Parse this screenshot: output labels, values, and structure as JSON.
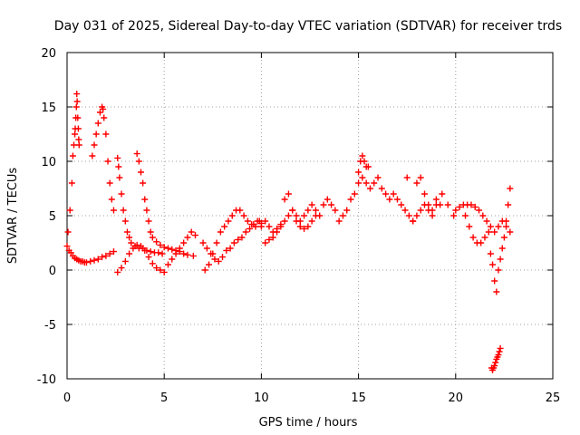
{
  "chart_data": {
    "type": "scatter",
    "title": "Day 031 of 2025, Sidereal Day-to-day VTEC variation (SDTVAR) for receiver trds",
    "xlabel": "GPS time / hours",
    "ylabel": "SDTVAR / TECUs",
    "xlim": [
      0,
      25
    ],
    "ylim": [
      -10,
      20
    ],
    "xticks": [
      0,
      5,
      10,
      15,
      20,
      25
    ],
    "yticks": [
      -10,
      -5,
      0,
      5,
      10,
      15,
      20
    ],
    "xtick_labels": [
      "0",
      "5",
      "10",
      "15",
      "20",
      "25"
    ],
    "ytick_labels": [
      "-10",
      "-5",
      "0",
      "5",
      "10",
      "15",
      "20"
    ],
    "grid": true,
    "marker": "+",
    "color": "#ff0000",
    "series": [
      {
        "name": "trds",
        "x": [
          0.0,
          0.1,
          0.2,
          0.3,
          0.4,
          0.5,
          0.6,
          0.7,
          0.8,
          0.9,
          1.0,
          1.2,
          1.4,
          1.6,
          1.8,
          2.0,
          2.2,
          2.4,
          0.05,
          0.15,
          0.25,
          0.3,
          0.35,
          0.4,
          0.42,
          0.45,
          0.48,
          0.5,
          0.52,
          0.55,
          0.58,
          0.6,
          0.62,
          1.3,
          1.4,
          1.5,
          1.6,
          1.7,
          1.8,
          1.85,
          1.9,
          2.0,
          2.1,
          2.2,
          2.3,
          2.4,
          2.6,
          2.65,
          2.7,
          2.8,
          2.9,
          3.0,
          3.1,
          3.2,
          3.3,
          3.5,
          3.7,
          3.9,
          4.1,
          4.3,
          4.5,
          4.7,
          4.9,
          3.6,
          3.7,
          3.8,
          3.9,
          4.0,
          4.1,
          4.2,
          4.3,
          4.4,
          4.6,
          4.8,
          5.0,
          5.2,
          5.4,
          5.6,
          5.8,
          6.0,
          6.2,
          6.5,
          2.6,
          2.8,
          3.0,
          3.2,
          3.4,
          3.6,
          3.8,
          4.0,
          4.2,
          4.4,
          4.6,
          4.8,
          5.0,
          5.2,
          5.4,
          5.6,
          5.8,
          6.0,
          6.2,
          6.4,
          6.6,
          7.0,
          7.2,
          7.4,
          7.6,
          7.8,
          8.0,
          8.2,
          8.4,
          8.6,
          8.8,
          9.0,
          9.2,
          9.4,
          9.6,
          9.8,
          10.0,
          7.1,
          7.3,
          7.5,
          7.7,
          7.9,
          8.1,
          8.3,
          8.5,
          8.7,
          8.9,
          9.1,
          9.3,
          9.5,
          9.7,
          9.9,
          10.0,
          10.2,
          10.4,
          10.6,
          10.8,
          11.0,
          11.2,
          11.4,
          11.6,
          11.8,
          12.0,
          12.2,
          12.4,
          12.6,
          12.8,
          10.2,
          10.4,
          10.6,
          10.8,
          11.0,
          11.2,
          11.4,
          11.6,
          11.8,
          12.0,
          12.2,
          12.4,
          12.6,
          12.8,
          13.0,
          13.2,
          13.4,
          13.6,
          13.8,
          14.0,
          14.2,
          14.4,
          14.6,
          14.8,
          15.0,
          15.2,
          15.4,
          15.6,
          15.8,
          16.0,
          16.2,
          16.4,
          16.6,
          16.8,
          17.0,
          17.2,
          17.4,
          17.6,
          17.8,
          18.0,
          18.2,
          18.4,
          18.6,
          18.8,
          19.0,
          19.2,
          15.0,
          15.1,
          15.2,
          15.3,
          15.4,
          15.5,
          17.5,
          17.8,
          18.0,
          18.2,
          18.4,
          18.6,
          18.8,
          19.0,
          19.3,
          19.6,
          19.9,
          20.0,
          20.2,
          20.4,
          20.6,
          20.8,
          21.0,
          21.2,
          21.4,
          21.6,
          21.8,
          22.0,
          22.2,
          22.4,
          22.6,
          22.8,
          20.5,
          20.7,
          20.9,
          21.1,
          21.3,
          21.5,
          21.7,
          21.8,
          21.9,
          22.0,
          22.1,
          22.2,
          22.3,
          22.4,
          22.5,
          22.6,
          22.7,
          22.8,
          21.85,
          21.9,
          21.95,
          22.0,
          22.05,
          22.1,
          22.15,
          22.2,
          22.25,
          22.3
        ],
        "y": [
          2.2,
          1.8,
          1.6,
          1.3,
          1.1,
          1.0,
          0.9,
          0.8,
          0.8,
          0.7,
          0.7,
          0.8,
          0.9,
          1.0,
          1.2,
          1.3,
          1.5,
          1.7,
          3.5,
          5.5,
          8.0,
          10.5,
          11.5,
          12.5,
          13.0,
          14.0,
          15.0,
          16.2,
          15.5,
          14.0,
          13.0,
          12.0,
          11.5,
          10.5,
          11.5,
          12.5,
          13.5,
          14.5,
          15.0,
          14.8,
          14.0,
          12.5,
          10.0,
          8.0,
          6.5,
          5.5,
          10.3,
          9.5,
          8.5,
          7.0,
          5.5,
          4.5,
          3.5,
          3.0,
          2.5,
          2.2,
          2.0,
          2.0,
          1.8,
          1.7,
          1.6,
          1.6,
          1.5,
          10.7,
          10.0,
          9.0,
          8.0,
          6.5,
          5.5,
          4.5,
          3.5,
          3.0,
          2.6,
          2.3,
          2.1,
          2.0,
          1.9,
          1.8,
          1.7,
          1.5,
          1.4,
          1.3,
          -0.2,
          0.2,
          0.8,
          1.5,
          2.0,
          2.3,
          2.2,
          1.8,
          1.2,
          0.6,
          0.2,
          0.0,
          -0.2,
          0.5,
          1.0,
          1.5,
          2.0,
          2.5,
          3.0,
          3.5,
          3.2,
          2.5,
          2.0,
          1.5,
          1.0,
          0.8,
          1.2,
          1.8,
          2.0,
          2.5,
          2.8,
          3.0,
          3.5,
          3.8,
          4.2,
          4.5,
          4.3,
          0.0,
          0.5,
          1.5,
          2.5,
          3.5,
          4.0,
          4.5,
          5.0,
          5.5,
          5.5,
          5.0,
          4.5,
          4.2,
          4.0,
          4.5,
          4.0,
          4.5,
          4.0,
          3.5,
          3.8,
          4.2,
          4.5,
          5.0,
          5.5,
          4.5,
          4.0,
          3.8,
          4.0,
          4.5,
          5.0,
          2.5,
          2.8,
          3.0,
          3.5,
          4.0,
          6.5,
          7.0,
          5.5,
          5.0,
          4.5,
          5.0,
          5.5,
          6.0,
          5.5,
          5.0,
          6.0,
          6.5,
          6.0,
          5.5,
          4.5,
          5.0,
          5.5,
          6.5,
          7.0,
          8.0,
          8.5,
          8.0,
          7.5,
          8.0,
          8.5,
          7.5,
          7.0,
          6.5,
          7.0,
          6.5,
          6.0,
          5.5,
          5.0,
          4.5,
          5.0,
          5.5,
          6.0,
          5.5,
          5.0,
          6.0,
          6.0,
          9.0,
          10.0,
          10.5,
          10.0,
          9.5,
          9.5,
          8.5,
          4.5,
          8.0,
          8.5,
          7.0,
          6.0,
          5.5,
          6.5,
          7.0,
          6.0,
          5.0,
          5.5,
          5.8,
          6.0,
          6.0,
          6.0,
          5.8,
          5.5,
          5.0,
          4.5,
          4.0,
          3.5,
          4.0,
          4.5,
          4.0,
          3.5,
          5.0,
          4.0,
          3.0,
          2.5,
          2.5,
          3.0,
          3.5,
          1.5,
          0.5,
          -1.0,
          -2.0,
          0.0,
          1.0,
          2.0,
          3.0,
          4.5,
          6.0,
          7.5,
          -9.0,
          -9.2,
          -9.0,
          -8.8,
          -8.5,
          -8.2,
          -8.0,
          -7.8,
          -7.5,
          -7.2
        ]
      }
    ]
  }
}
